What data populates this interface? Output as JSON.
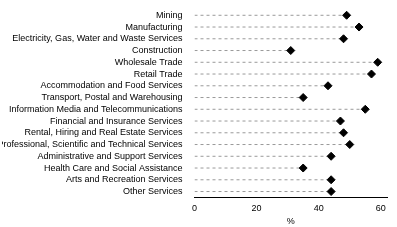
{
  "chart_data": {
    "type": "dot",
    "orientation": "horizontal",
    "categories": [
      "Mining",
      "Manufacturing",
      "Electricity, Gas, Water and Waste Services",
      "Construction",
      "Wholesale Trade",
      "Retail Trade",
      "Accommodation and Food Services",
      "Transport, Postal and Warehousing",
      "Information Media and Telecommunications",
      "Financial and Insurance Services",
      "Rental, Hiring and Real Estate Services",
      "Professional, Scientific and Technical Services",
      "Administrative and Support Services",
      "Health Care and Social Assistance",
      "Arts and Recreation Services",
      "Other Services"
    ],
    "values": [
      49,
      53,
      48,
      31,
      59,
      57,
      43,
      35,
      55,
      47,
      48,
      50,
      44,
      35,
      44,
      44
    ],
    "color": "#000000",
    "marker": "diamond",
    "line_style": "dashed",
    "xlabel": "%",
    "xlim": [
      0,
      62
    ],
    "xticks": [
      0,
      20,
      40,
      60
    ],
    "grid": false,
    "legend": false
  }
}
